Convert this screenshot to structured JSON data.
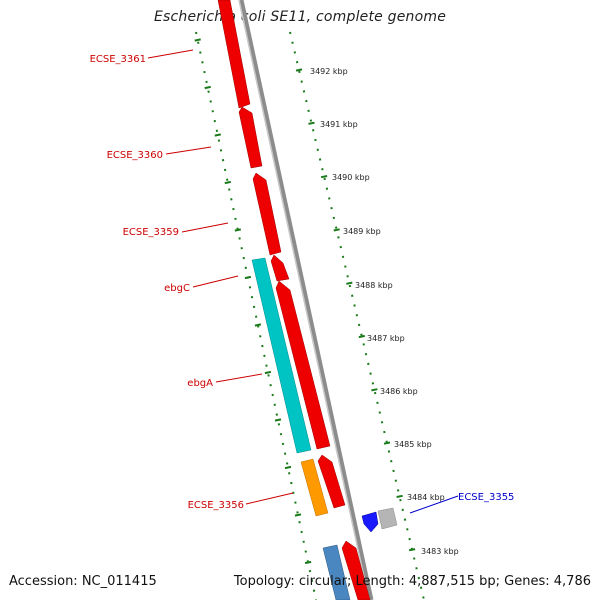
{
  "title": "Escherichia coli SE11, complete genome",
  "accession": "Accession: NC_011415",
  "topology": "Topology: circular; Length: 4,887,515 bp; Genes: 4,786",
  "colors": {
    "backbone": "#8c8c8c",
    "tick": "#1a7a1a",
    "plus_strand_gene": "#ee0000",
    "cyan_gene": "#00c4c4",
    "orange_gene": "#ff9900",
    "steelblue_gene": "#4a86c0",
    "blue_gene": "#1a1aff",
    "gray_gene": "#b5b5b5",
    "label_red": "#cc0000",
    "label_blue": "#0000cc"
  },
  "scale_labels": [
    "3492 kbp",
    "3491 kbp",
    "3490 kbp",
    "3489 kbp",
    "3488 kbp",
    "3487 kbp",
    "3486 kbp",
    "3485 kbp",
    "3484 kbp",
    "3483 kbp"
  ],
  "gene_labels": [
    {
      "text": "ECSE_3361",
      "color": "red"
    },
    {
      "text": "ECSE_3360",
      "color": "red"
    },
    {
      "text": "ECSE_3359",
      "color": "red"
    },
    {
      "text": "ebgC",
      "color": "red"
    },
    {
      "text": "ebgA",
      "color": "red"
    },
    {
      "text": "ECSE_3356",
      "color": "red"
    },
    {
      "text": "ECSE_3355",
      "color": "blue"
    }
  ]
}
